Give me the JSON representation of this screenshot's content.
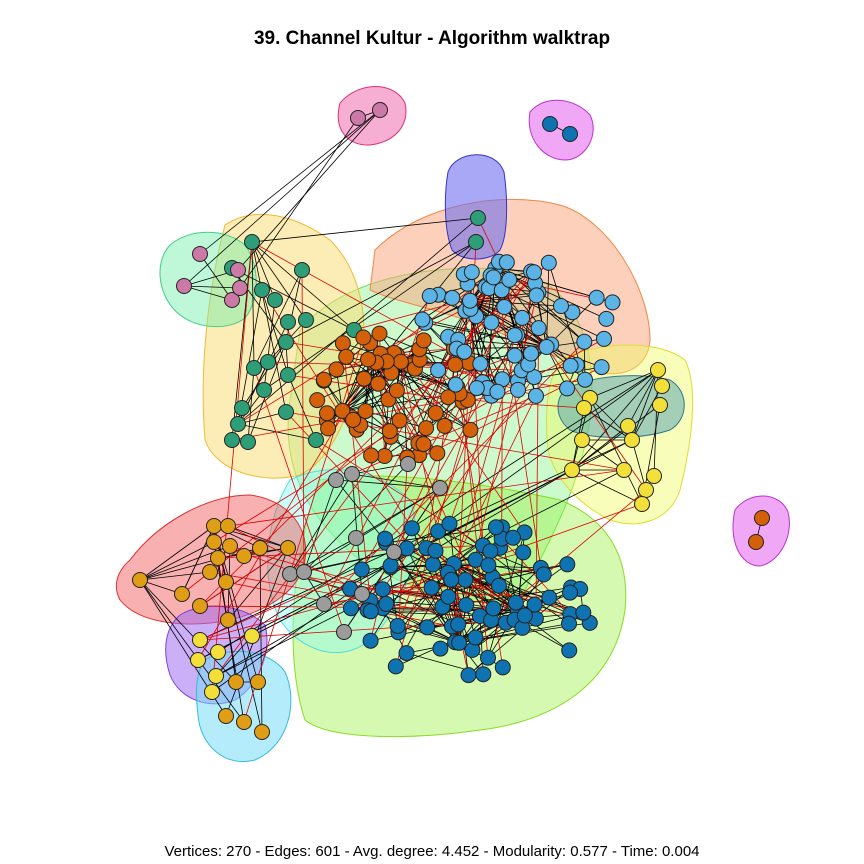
{
  "title": "39. Channel Kultur - Algorithm walktrap",
  "footer": "Vertices: 270 - Edges: 601 - Avg. degree: 4.452 - Modularity: 0.577 - Time: 0.004",
  "colors": {
    "community_green": "#2e9e78",
    "community_orange": "#d4600a",
    "community_lightblue": "#5bb4e5",
    "community_darkblue": "#0e73b0",
    "community_gray": "#9c9c9c",
    "community_yellow": "#f2df3a",
    "community_amber": "#e09d16",
    "community_pink": "#cc79a7",
    "edge_within": "#000000",
    "edge_between": "#dd0000"
  }
}
